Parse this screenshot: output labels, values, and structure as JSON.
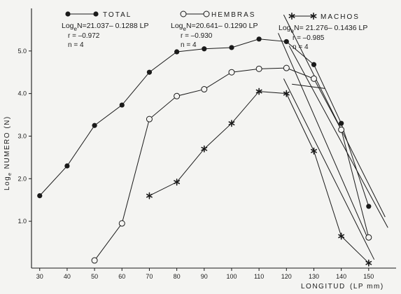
{
  "chart_data": {
    "type": "line",
    "xlabel": "LONGITUD",
    "xunit": "(LP mm)",
    "ylabel_prefix": "Log",
    "ylabel_sub": "e",
    "ylabel": "NUMERO (N)",
    "xlim": [
      27,
      160
    ],
    "ylim": [
      -0.1,
      6.0
    ],
    "xticks": [
      30,
      40,
      50,
      60,
      70,
      80,
      90,
      100,
      110,
      120,
      130,
      140,
      150
    ],
    "yticks": [
      1.0,
      2.0,
      3.0,
      4.0,
      5.0
    ],
    "ytick_labels": [
      "1.0",
      "2.0",
      "3.0",
      "4.0",
      "5.0"
    ],
    "grid": false,
    "series": [
      {
        "name": "TOTAL",
        "marker": "filled-circle",
        "x": [
          30,
          40,
          50,
          60,
          70,
          80,
          90,
          100,
          110,
          120,
          130,
          140,
          150
        ],
        "y": [
          1.6,
          2.3,
          3.25,
          3.73,
          4.5,
          4.98,
          5.05,
          5.08,
          5.28,
          5.22,
          4.68,
          3.3,
          1.35
        ]
      },
      {
        "name": "HEMBRAS",
        "marker": "open-circle",
        "x": [
          50,
          60,
          70,
          80,
          90,
          100,
          110,
          120,
          130,
          140,
          150
        ],
        "y": [
          0.08,
          0.95,
          3.4,
          3.94,
          4.1,
          4.5,
          4.58,
          4.6,
          4.35,
          3.15,
          0.62
        ]
      },
      {
        "name": "MACHOS",
        "marker": "star",
        "x": [
          70,
          80,
          90,
          100,
          110,
          120,
          130,
          140,
          150
        ],
        "y": [
          1.6,
          1.92,
          2.7,
          3.3,
          4.05,
          4.0,
          2.65,
          0.65,
          0.02
        ]
      }
    ],
    "regressions": [
      {
        "x": [
          119,
          156
        ],
        "y": [
          5.85,
          1.1
        ]
      },
      {
        "x": [
          121,
          157
        ],
        "y": [
          5.12,
          0.85
        ]
      },
      {
        "x": [
          119,
          152
        ],
        "y": [
          4.35,
          0.1
        ]
      },
      {
        "x": [
          117,
          150
        ],
        "y": [
          5.42,
          0.55
        ]
      },
      {
        "x": [
          122,
          134
        ],
        "y": [
          4.22,
          4.12
        ]
      }
    ]
  },
  "legend": {
    "total": {
      "title": "TOTAL",
      "eq_prefix": "Log",
      "eq_sub": "e",
      "eq": "N=21.037– 0.1288 LP",
      "r": "r = –0.972",
      "n": "n = 4"
    },
    "hembras": {
      "title": "HEMBRAS",
      "eq_prefix": "Log",
      "eq_sub": "e",
      "eq": "N=20.641– 0.1290 LP",
      "r": "r = –0.930",
      "n": "n = 4"
    },
    "machos": {
      "title": "MACHOS",
      "eq_prefix": "Log",
      "eq_sub": "e",
      "eq": "N= 21.276– 0.1436 LP",
      "r": "r = –0.985",
      "n": "n = 4"
    }
  },
  "colors": {
    "ink": "#1a1a1a",
    "paper": "#f4f4f2"
  }
}
